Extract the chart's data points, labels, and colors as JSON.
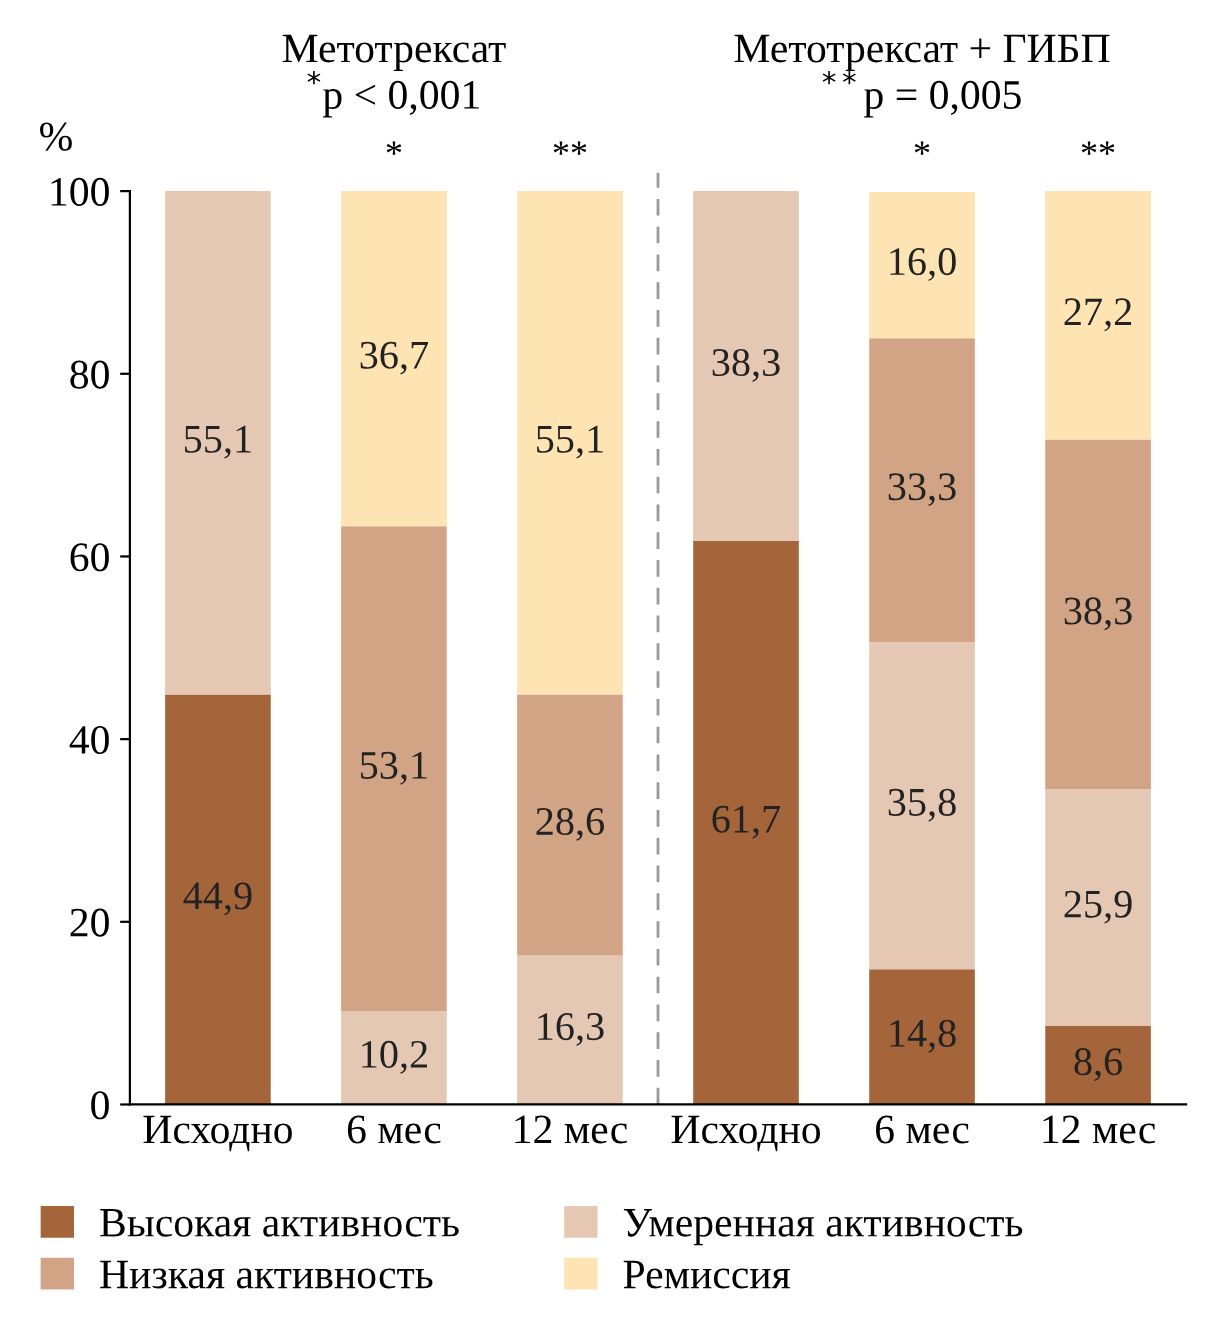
{
  "chart_data": {
    "type": "bar",
    "stacked": true,
    "ylabel": "%",
    "annotations": [
      "Метотрексат\n$^{*}$p < 0,001",
      "Метотрексат + ГИБП\n$^{**}$p = 0,005"
    ],
    "categories": [
      "Исходно",
      "6 мес",
      "12 мес",
      "Исходно",
      "6 мес",
      "12 мес"
    ],
    "series": [
      {
        "name": "Высокая активность",
        "color": "#a5653a",
        "values": [
          44.9,
          null,
          null,
          61.7,
          14.8,
          8.6
        ],
        "value_labels": [
          "44,9",
          null,
          null,
          "61,7",
          "14,8",
          "8,6"
        ]
      },
      {
        "name": "Умеренная активность",
        "color": "#e5c8b4",
        "values": [
          55.1,
          10.2,
          16.3,
          38.3,
          35.8,
          25.9
        ],
        "value_labels": [
          "55,1",
          "10,2",
          "16,3",
          "38,3",
          "35,8",
          "25,9"
        ]
      },
      {
        "name": "Низкая активность",
        "color": "#d1a485",
        "values": [
          null,
          53.1,
          28.6,
          null,
          33.3,
          38.3
        ],
        "value_labels": [
          null,
          "53,1",
          "28,6",
          null,
          "33,3",
          "38,3"
        ]
      },
      {
        "name": "Ремиссия",
        "color": "#fee4b2",
        "values": [
          null,
          36.7,
          55.1,
          null,
          16.0,
          27.2
        ],
        "value_labels": [
          null,
          "36,7",
          "55,1",
          null,
          "16,0",
          "27,2"
        ]
      }
    ],
    "totals": [
      null,
      "*",
      "**",
      null,
      "*",
      "**"
    ],
    "ylim": [
      0,
      100
    ],
    "yticks": [
      0,
      20,
      40,
      60,
      80,
      100
    ],
    "grid": false,
    "legend": "bottom"
  }
}
